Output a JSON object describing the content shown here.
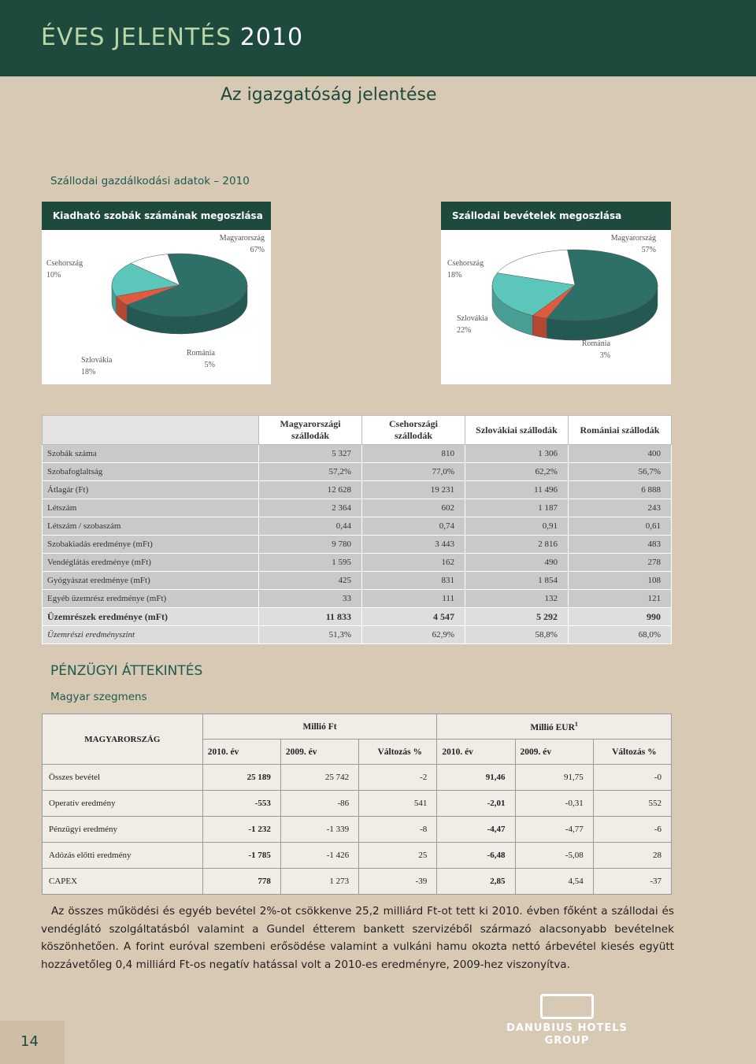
{
  "header": {
    "title": "ÉVES JELENTÉS",
    "year": "2010",
    "subtitle": "Az igazgatóság jelentése"
  },
  "section_title": "Szállodai gazdálkodási adatok – 2010",
  "chart_data": [
    {
      "type": "pie",
      "title": "Kiadható szobák számának megoszlása",
      "categories": [
        "Magyarország",
        "Csehország",
        "Szlovákia",
        "Románia"
      ],
      "values": [
        67,
        10,
        18,
        5
      ],
      "value_labels": [
        "67%",
        "10%",
        "18%",
        "5%"
      ],
      "colors": [
        "#2e7068",
        "#ffffff",
        "#5cc6ba",
        "#e05a40"
      ]
    },
    {
      "type": "pie",
      "title": "Szállodai bevételek megoszlása",
      "categories": [
        "Magyarország",
        "Csehország",
        "Szlovákia",
        "Románia"
      ],
      "values": [
        57,
        18,
        22,
        3
      ],
      "value_labels": [
        "57%",
        "18%",
        "22%",
        "3%"
      ],
      "colors": [
        "#2e7068",
        "#ffffff",
        "#5cc6ba",
        "#e05a40"
      ]
    }
  ],
  "hotel_table": {
    "columns": [
      "Magyarországi szállodák",
      "Csehországi szállodák",
      "Szlovákiai szállodák",
      "Romániai szállodák"
    ],
    "rows": [
      [
        "Szobák száma",
        "5 327",
        "810",
        "1 306",
        "400"
      ],
      [
        "Szobafoglaltság",
        "57,2%",
        "77,0%",
        "62,2%",
        "56,7%"
      ],
      [
        "Átlagár (Ft)",
        "12 628",
        "19 231",
        "11 496",
        "6 888"
      ],
      [
        "Létszám",
        "2 364",
        "602",
        "1 187",
        "243"
      ],
      [
        "Létszám / szobaszám",
        "0,44",
        "0,74",
        "0,91",
        "0,61"
      ],
      [
        "Szobakiadás eredménye (mFt)",
        "9 780",
        "3 443",
        "2 816",
        "483"
      ],
      [
        "Vendéglátás eredménye (mFt)",
        "1 595",
        "162",
        "490",
        "278"
      ],
      [
        "Gyógyászat eredménye (mFt)",
        "425",
        "831",
        "1 854",
        "108"
      ],
      [
        "Egyéb üzemrész eredménye (mFt)",
        "33",
        "111",
        "132",
        "121"
      ],
      [
        "Üzemrészek eredménye (mFt)",
        "11 833",
        "4 547",
        "5 292",
        "990"
      ],
      [
        "Üzemrészi eredményszint",
        "51,3%",
        "62,9%",
        "58,8%",
        "68,0%"
      ]
    ]
  },
  "financial": {
    "title": "PÉNZÜGYI ÁTTEKINTÉS",
    "segment": "Magyar szegmens",
    "corner": "MAGYARORSZÁG",
    "groups": [
      "Millió Ft",
      "Millió EUR"
    ],
    "footnote_mark": "1",
    "subheaders": [
      "2010. év",
      "2009. év",
      "Változás %",
      "2010. év",
      "2009. év",
      "Változás %"
    ],
    "rows": [
      [
        "Összes bevétel",
        "25 189",
        "25 742",
        "-2",
        "91,46",
        "91,75",
        "-0"
      ],
      [
        "Operatív eredmény",
        "-553",
        "-86",
        "541",
        "-2,01",
        "-0,31",
        "552"
      ],
      [
        "Pénzügyi eredmény",
        "-1 232",
        "-1 339",
        "-8",
        "-4,47",
        "-4,77",
        "-6"
      ],
      [
        "Adózás előtti eredmény",
        "-1 785",
        "-1 426",
        "25",
        "-6,48",
        "-5,08",
        "28"
      ],
      [
        "CAPEX",
        "778",
        "1 273",
        "-39",
        "2,85",
        "4,54",
        "-37"
      ]
    ]
  },
  "paragraph": "Az összes működési és egyéb bevétel 2%-ot csökkenve 25,2 milliárd Ft-ot tett ki 2010. évben főként a szállodai és vendéglátó szolgáltatásból valamint a Gundel étterem bankett szervizéből származó alacsonyabb bevételnek köszönhetően. A forint euróval szembeni erősödése valamint a vulkáni hamu okozta nettó árbevétel kiesés együtt hozzávetőleg 0,4 milliárd Ft-os negatív hatással volt a 2010-es eredményre, 2009-hez viszonyítva.",
  "footer": {
    "page_number": "14",
    "logo_line1": "DANUBIUS HOTELS",
    "logo_line2": "GROUP"
  }
}
